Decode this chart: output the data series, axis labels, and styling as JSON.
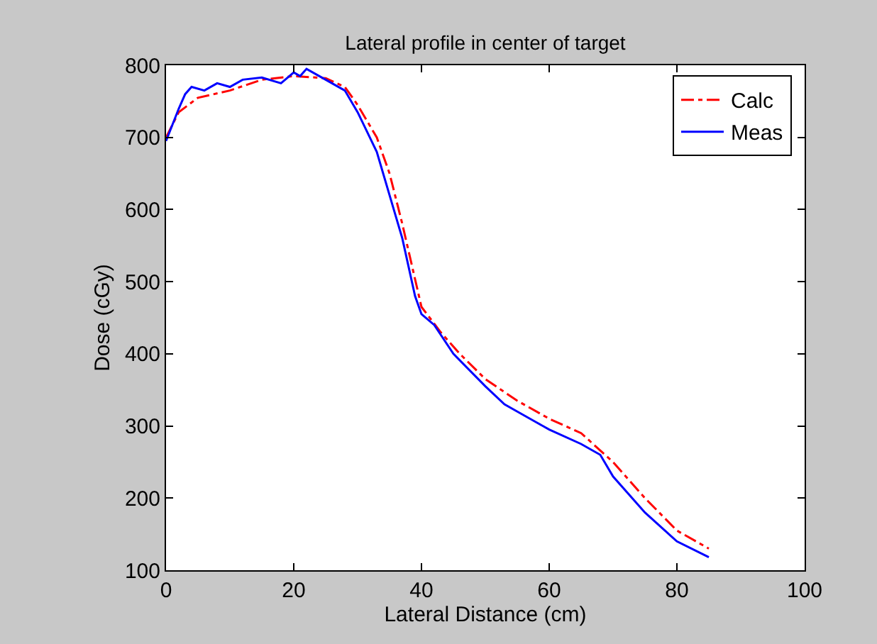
{
  "chart_data": {
    "type": "line",
    "title": "Lateral profile in center of target",
    "xlabel": "Lateral Distance (cm)",
    "ylabel": "Dose (cGy)",
    "series": [
      {
        "name": "Calc",
        "color": "#ff0000",
        "line_style": "dashdot",
        "x": [
          0,
          2,
          5,
          10,
          15,
          20,
          25,
          28,
          30,
          33,
          35,
          37,
          40,
          43,
          46,
          50,
          55,
          60,
          65,
          70,
          75,
          80,
          85
        ],
        "values": [
          700,
          735,
          755,
          765,
          780,
          785,
          782,
          770,
          745,
          700,
          650,
          580,
          465,
          430,
          400,
          365,
          335,
          310,
          290,
          250,
          200,
          155,
          130
        ]
      },
      {
        "name": "Meas",
        "color": "#0000ff",
        "line_style": "solid",
        "x": [
          0,
          2,
          3,
          4,
          6,
          8,
          10,
          12,
          15,
          18,
          20,
          21,
          22,
          25,
          28,
          30,
          33,
          35,
          37,
          39,
          40,
          42,
          45,
          50,
          53,
          55,
          58,
          60,
          65,
          68,
          70,
          75,
          80,
          85
        ],
        "values": [
          695,
          740,
          760,
          770,
          765,
          775,
          770,
          780,
          783,
          775,
          790,
          785,
          795,
          780,
          765,
          735,
          680,
          620,
          560,
          480,
          455,
          440,
          400,
          355,
          330,
          320,
          305,
          295,
          275,
          260,
          230,
          180,
          140,
          118
        ]
      }
    ],
    "xlim": [
      0,
      100
    ],
    "xticks": [
      0,
      20,
      40,
      60,
      80,
      100
    ],
    "ylim": [
      100,
      800
    ],
    "yticks": [
      100,
      200,
      300,
      400,
      500,
      600,
      700,
      800
    ],
    "grid": false,
    "legend": "top right",
    "marker": "none"
  }
}
